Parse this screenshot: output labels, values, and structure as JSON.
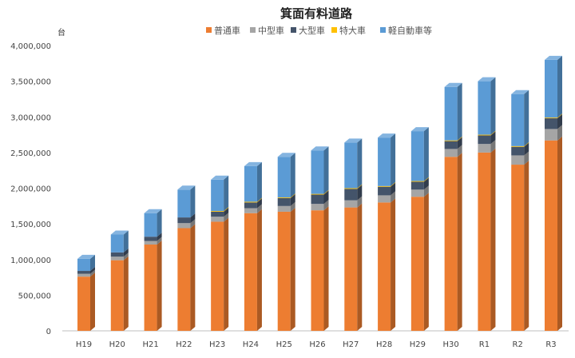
{
  "chart_data": {
    "type": "bar",
    "stacked": true,
    "three_d": true,
    "title": "箕面有料道路",
    "ylabel": "台",
    "xlabel": "",
    "ylim": [
      0,
      4000000
    ],
    "y_ticks": [
      "0",
      "500,000",
      "1,000,000",
      "1,500,000",
      "2,000,000",
      "2,500,000",
      "3,000,000",
      "3,500,000",
      "4,000,000"
    ],
    "grid": false,
    "legend_position": "top",
    "categories": [
      "H19",
      "H20",
      "H21",
      "H22",
      "H23",
      "H24",
      "H25",
      "H26",
      "H27",
      "H28",
      "H29",
      "H30",
      "R1",
      "R2",
      "R3"
    ],
    "series": [
      {
        "name": "普通車",
        "color": "#ED7D31",
        "values": [
          760000,
          990000,
          1210000,
          1440000,
          1530000,
          1650000,
          1670000,
          1690000,
          1730000,
          1800000,
          1880000,
          2440000,
          2500000,
          2330000,
          2670000
        ]
      },
      {
        "name": "中型車",
        "color": "#A5A5A5",
        "values": [
          40000,
          50000,
          50000,
          70000,
          70000,
          70000,
          80000,
          90000,
          100000,
          100000,
          100000,
          110000,
          120000,
          130000,
          160000
        ]
      },
      {
        "name": "大型車",
        "color": "#44546A",
        "values": [
          40000,
          60000,
          60000,
          80000,
          70000,
          80000,
          110000,
          130000,
          160000,
          120000,
          110000,
          110000,
          120000,
          120000,
          150000
        ]
      },
      {
        "name": "特大車",
        "color": "#FFC000",
        "values": [
          0,
          0,
          0,
          0,
          10000,
          10000,
          10000,
          10000,
          10000,
          10000,
          10000,
          10000,
          10000,
          10000,
          10000
        ]
      },
      {
        "name": "軽自動車等",
        "color": "#5B9BD5",
        "values": [
          170000,
          250000,
          330000,
          390000,
          440000,
          500000,
          570000,
          610000,
          640000,
          680000,
          700000,
          750000,
          750000,
          730000,
          810000
        ]
      }
    ]
  }
}
